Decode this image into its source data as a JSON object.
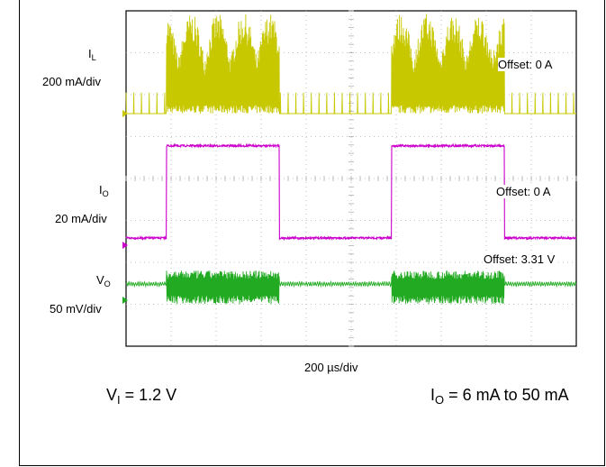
{
  "chart_data": {
    "type": "line",
    "title": "",
    "xlabel": "200 µs/div",
    "x_unit": "µs",
    "x_range": [
      0,
      2000
    ],
    "x_divisions": 10,
    "y_divisions": 8,
    "grid": true,
    "load_steps": {
      "high_intervals_us": [
        [
          180,
          680
        ],
        [
          1180,
          1680
        ]
      ]
    },
    "series": [
      {
        "name": "IL",
        "symbol": "I",
        "sub": "L",
        "scale": "200 mA/div",
        "offset": "Offset: 0 A",
        "color": "#c8c800",
        "light_load_amplitude_mA": 100,
        "heavy_load_peak_mA": 480
      },
      {
        "name": "IO",
        "symbol": "I",
        "sub": "O",
        "scale": "20 mA/div",
        "offset": "Offset: 0 A",
        "color": "#cc00cc",
        "low_mA": 6,
        "high_mA": 50
      },
      {
        "name": "VO",
        "symbol": "V",
        "sub": "O",
        "scale": "50 mV/div",
        "offset": "Offset: 3.31 V",
        "color": "#22aa22",
        "nominal_V": 3.31,
        "ripple_light_mV": 10,
        "ripple_heavy_mV": 40
      }
    ],
    "conditions": {
      "vi": {
        "symbol": "V",
        "sub": "I",
        "value": " = 1.2 V"
      },
      "io": {
        "symbol": "I",
        "sub": "O",
        "value": " = 6 mA to 50 mA"
      }
    }
  }
}
